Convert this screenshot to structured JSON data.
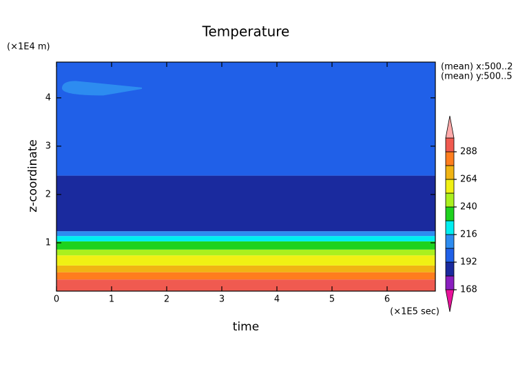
{
  "chart_data": {
    "type": "contour",
    "title": "Temperature",
    "x_label": "time",
    "x_unit": "(×1E5 sec)",
    "y_label": "z-coordinate",
    "y_unit": "(×1E4 m)",
    "annotations": [
      "(mean) x:500..2",
      "(mean) y:500..5"
    ],
    "xlim": [
      0,
      6.875
    ],
    "xticks": [
      0,
      1,
      2,
      3,
      4,
      5,
      6
    ],
    "ylim": [
      0,
      4.74
    ],
    "yticks": [
      1,
      2,
      3,
      4
    ],
    "bands": {
      "bounds": [
        0,
        0.24,
        0.39,
        0.53,
        0.74,
        0.86,
        1.03,
        1.14,
        1.24,
        2.39,
        4.74
      ],
      "values": [
        294,
        282,
        270,
        258,
        246,
        234,
        222,
        210,
        186,
        198
      ]
    },
    "patches": [
      {
        "x": [
          0.1,
          1.55
        ],
        "z": [
          4.05,
          4.35
        ],
        "value": 210
      }
    ],
    "colorbar": {
      "levels": [
        168,
        180,
        192,
        204,
        216,
        228,
        240,
        252,
        264,
        276,
        288,
        300
      ],
      "colors": [
        "#e8129a",
        "#8a1fbf",
        "#1a2a9e",
        "#2060e8",
        "#2d8cf0",
        "#00eef0",
        "#1ed21e",
        "#aaf01e",
        "#f0f014",
        "#f0b414",
        "#ff7d1e",
        "#f05a50",
        "#ffaaaa"
      ],
      "ticks": [
        168,
        192,
        216,
        240,
        264,
        288
      ]
    }
  }
}
